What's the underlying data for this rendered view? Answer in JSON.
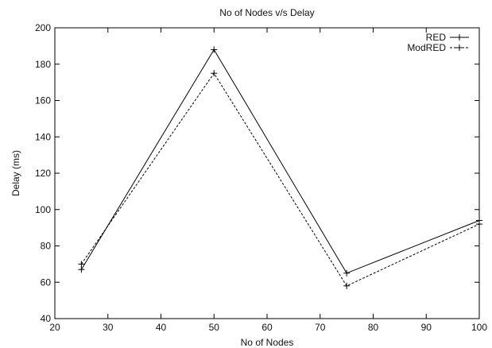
{
  "chart_data": {
    "type": "line",
    "title": "No of Nodes v/s Delay",
    "xlabel": "No of Nodes",
    "ylabel": "Delay (ms)",
    "xlim": [
      20,
      100
    ],
    "ylim": [
      40,
      200
    ],
    "xticks": [
      20,
      30,
      40,
      50,
      60,
      70,
      80,
      90,
      100
    ],
    "yticks": [
      40,
      60,
      80,
      100,
      120,
      140,
      160,
      180,
      200
    ],
    "grid": false,
    "legend_position": "top-right",
    "series": [
      {
        "name": "RED",
        "style": "solid",
        "color": "#000000",
        "x": [
          25,
          50,
          75,
          100
        ],
        "y": [
          67,
          188,
          65,
          94
        ]
      },
      {
        "name": "ModRED",
        "style": "dashed",
        "color": "#000000",
        "x": [
          25,
          50,
          75,
          100
        ],
        "y": [
          70,
          175,
          58,
          92
        ]
      }
    ]
  }
}
